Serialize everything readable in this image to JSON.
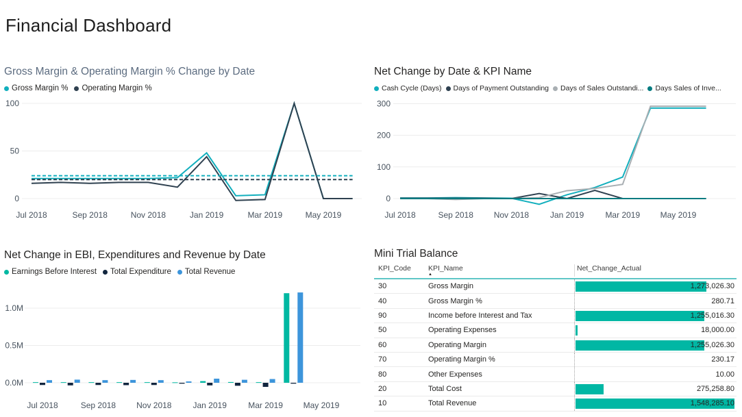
{
  "page": {
    "title": "Financial Dashboard"
  },
  "colors": {
    "teal": "#12afbd",
    "navy": "#2f4150",
    "gray": "#a9afb3",
    "dark_teal": "#047b80",
    "green": "#00b8a2",
    "dark_navy": "#12263f",
    "blue": "#3d95db",
    "table_bar": "#00b7a4",
    "header_rule": "#5fc6c6",
    "gridline": "#ececec"
  },
  "chart_data": [
    {
      "id": "margin",
      "type": "line",
      "title": "Gross Margin & Operating Margin % Change by Date",
      "x": [
        "Jul 2018",
        "Aug 2018",
        "Sep 2018",
        "Oct 2018",
        "Nov 2018",
        "Dec 2018",
        "Jan 2019",
        "Feb 2019",
        "Mar 2019",
        "Apr 2019",
        "May 2019",
        "Jun 2019"
      ],
      "visible_x_ticks": [
        "Jul 2018",
        "Sep 2018",
        "Nov 2018",
        "Jan 2019",
        "Mar 2019",
        "May 2019"
      ],
      "yticks": [
        0,
        50,
        100
      ],
      "ylim": [
        -10,
        104
      ],
      "grid": true,
      "legend_position": "top",
      "series": [
        {
          "name": "Gross Margin %",
          "color": "teal",
          "values": [
            21,
            21,
            21,
            21,
            21,
            22,
            48,
            3,
            4,
            100,
            0,
            0
          ]
        },
        {
          "name": "Operating Margin %",
          "color": "navy",
          "values": [
            16,
            17,
            16,
            17,
            17,
            12,
            44,
            -2,
            -1,
            100,
            0,
            0
          ]
        },
        {
          "name": "Gross Margin % trend",
          "color": "teal",
          "dashed": true,
          "constant": 24,
          "legend": false
        },
        {
          "name": "Operating Margin % trend",
          "color": "navy",
          "dashed": true,
          "constant": 20,
          "legend": false
        }
      ]
    },
    {
      "id": "kpi",
      "type": "line",
      "title": "Net Change by Date & KPI Name",
      "x": [
        "Jul 2018",
        "Aug 2018",
        "Sep 2018",
        "Oct 2018",
        "Nov 2018",
        "Dec 2018",
        "Jan 2019",
        "Feb 2019",
        "Mar 2019",
        "Apr 2019",
        "May 2019",
        "Jun 2019"
      ],
      "visible_x_ticks": [
        "Jul 2018",
        "Sep 2018",
        "Nov 2018",
        "Jan 2019",
        "Mar 2019",
        "May 2019"
      ],
      "yticks": [
        0,
        100,
        200,
        300
      ],
      "ylim": [
        -30,
        310
      ],
      "grid": true,
      "legend_position": "top",
      "series": [
        {
          "name": "Cash Cycle (Days)",
          "color": "teal",
          "values": [
            2,
            2,
            3,
            2,
            1,
            -18,
            12,
            35,
            68,
            286,
            286,
            286
          ]
        },
        {
          "name": "Days of Payment Outstanding",
          "color": "navy",
          "values": [
            1,
            1,
            1,
            1,
            0,
            16,
            0,
            26,
            0,
            0,
            0,
            0
          ]
        },
        {
          "name": "Days of Sales Outstandi...",
          "color": "gray",
          "values": [
            0,
            0,
            -3,
            0,
            0,
            3,
            25,
            32,
            45,
            292,
            292,
            292
          ]
        },
        {
          "name": "Days Sales of Inve...",
          "color": "dark_teal",
          "values": [
            0,
            0,
            0,
            0,
            0,
            0,
            0,
            0,
            0,
            0,
            0,
            0
          ]
        }
      ]
    },
    {
      "id": "ebi",
      "type": "bar",
      "title": "Net Change in EBI, Expenditures and Revenue by Date",
      "x": [
        "Jul 2018",
        "Aug 2018",
        "Sep 2018",
        "Oct 2018",
        "Nov 2018",
        "Dec 2018",
        "Jan 2019",
        "Feb 2019",
        "Mar 2019",
        "Apr 2019",
        "May 2019",
        "Jun 2019"
      ],
      "visible_x_ticks": [
        "Jul 2018",
        "Sep 2018",
        "Nov 2018",
        "Jan 2019",
        "Mar 2019",
        "May 2019"
      ],
      "yticks": [
        0,
        0.5,
        1.0
      ],
      "ytick_labels": [
        "0.0M",
        "0.5M",
        "1.0M"
      ],
      "ylim": [
        -0.09,
        1.28
      ],
      "unit": "M",
      "grid": true,
      "legend_position": "top",
      "series": [
        {
          "name": "Earnings Before Interest",
          "color": "green",
          "values": [
            0.008,
            0.008,
            0.008,
            0.008,
            0.008,
            0.006,
            0.022,
            0.01,
            0.008,
            1.2,
            null,
            null
          ]
        },
        {
          "name": "Total Expenditure",
          "color": "dark_navy",
          "values": [
            -0.03,
            -0.035,
            -0.03,
            -0.032,
            -0.03,
            -0.012,
            -0.035,
            -0.04,
            -0.055,
            -0.012,
            null,
            null
          ]
        },
        {
          "name": "Total Revenue",
          "color": "blue",
          "values": [
            0.035,
            0.042,
            0.035,
            0.038,
            0.035,
            0.018,
            0.055,
            0.04,
            0.05,
            1.21,
            null,
            null
          ]
        }
      ]
    }
  ],
  "table": {
    "title": "Mini Trial Balance",
    "columns": [
      "KPI_Code",
      "KPI_Name",
      "Net_Change_Actual"
    ],
    "sort_column": "KPI_Name",
    "sort_direction": "ascending",
    "sort_indicator": "▲",
    "rows": [
      {
        "code": "30",
        "name": "Gross Margin",
        "value": 1273026.3,
        "formatted": "1,273,026.30"
      },
      {
        "code": "40",
        "name": "Gross Margin %",
        "value": 280.71,
        "formatted": "280.71"
      },
      {
        "code": "90",
        "name": "Income before Interest and Tax",
        "value": 1255016.3,
        "formatted": "1,255,016.30"
      },
      {
        "code": "50",
        "name": "Operating Expenses",
        "value": 18000.0,
        "formatted": "18,000.00"
      },
      {
        "code": "60",
        "name": "Operating Margin",
        "value": 1255026.3,
        "formatted": "1,255,026.30"
      },
      {
        "code": "70",
        "name": "Operating Margin %",
        "value": 230.17,
        "formatted": "230.17"
      },
      {
        "code": "80",
        "name": "Other Expenses",
        "value": 10.0,
        "formatted": "10.00"
      },
      {
        "code": "20",
        "name": "Total Cost",
        "value": 275258.8,
        "formatted": "275,258.80"
      },
      {
        "code": "10",
        "name": "Total Revenue",
        "value": 1548285.1,
        "formatted": "1,548,285.10"
      }
    ]
  }
}
